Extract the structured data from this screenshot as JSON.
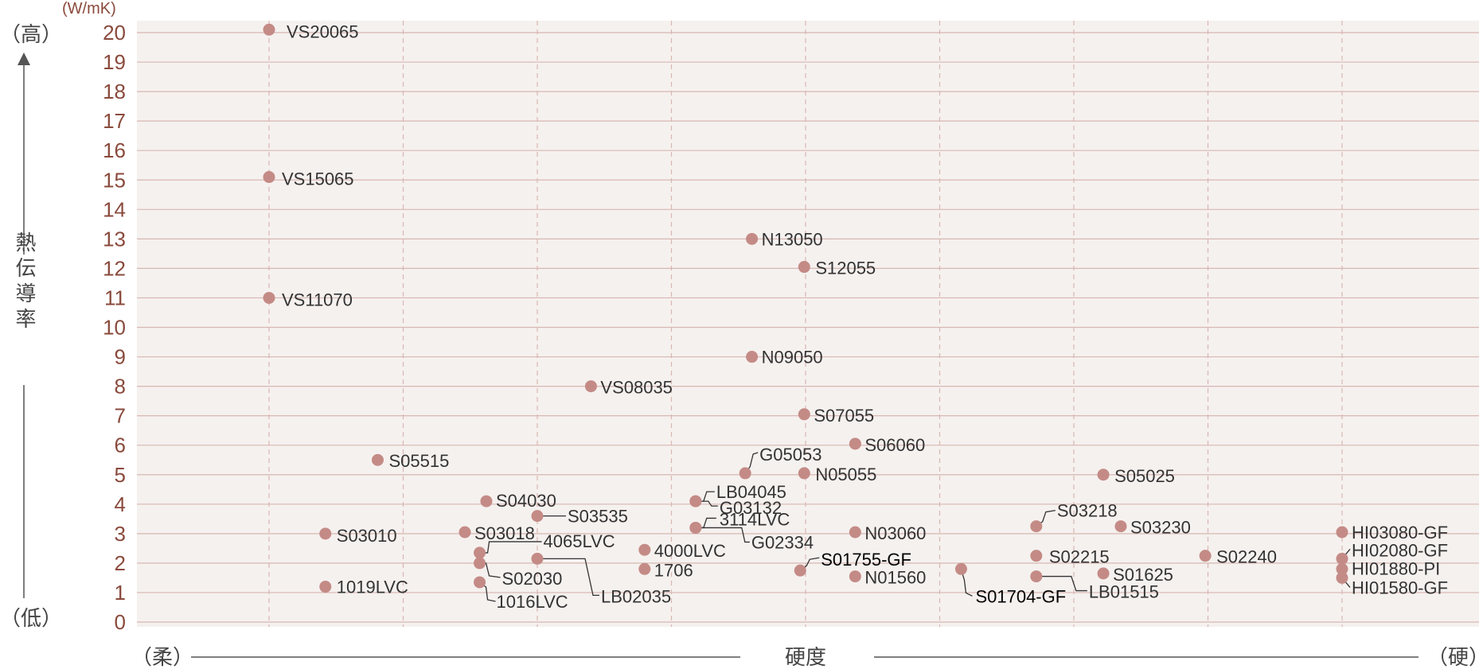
{
  "chart_data": {
    "type": "scatter",
    "y_unit": "(W/mK)",
    "ylabel": "熱伝導率",
    "ylabel_high": "（高）",
    "ylabel_low": "（低）",
    "xlabel": "硬度",
    "xlabel_soft": "（柔）",
    "xlabel_hard": "（硬）",
    "ylim": [
      0,
      20
    ],
    "yticks": [
      0,
      1,
      2,
      3,
      4,
      5,
      6,
      7,
      8,
      9,
      10,
      11,
      12,
      13,
      14,
      15,
      16,
      17,
      18,
      19,
      20
    ],
    "xlim": [
      0,
      10
    ],
    "grid": true,
    "point_color": "#c48b86",
    "grid_color": "#d8b7b2",
    "plot_bg": "#f5f1ef",
    "tick_color": "#8a4a3c",
    "points": [
      {
        "name": "VS20065",
        "x": 1.0,
        "y": 20.1
      },
      {
        "name": "VS15065",
        "x": 1.0,
        "y": 15.1
      },
      {
        "name": "VS11070",
        "x": 1.0,
        "y": 11.0
      },
      {
        "name": "S05515",
        "x": 1.81,
        "y": 5.5
      },
      {
        "name": "S03010",
        "x": 1.42,
        "y": 3.0
      },
      {
        "name": "1019LVC",
        "x": 1.42,
        "y": 1.2
      },
      {
        "name": "S04030",
        "x": 2.62,
        "y": 4.1
      },
      {
        "name": "S03018",
        "x": 2.46,
        "y": 3.05
      },
      {
        "name": "4065LVC",
        "x": 2.57,
        "y": 2.35
      },
      {
        "name": "S02030",
        "x": 2.57,
        "y": 2.0
      },
      {
        "name": "1016LVC",
        "x": 2.57,
        "y": 1.35
      },
      {
        "name": "S03535",
        "x": 3.0,
        "y": 3.6
      },
      {
        "name": "LB02035",
        "x": 3.0,
        "y": 2.15
      },
      {
        "name": "VS08035",
        "x": 3.4,
        "y": 8.0
      },
      {
        "name": "4000LVC",
        "x": 3.8,
        "y": 2.45
      },
      {
        "name": "1706",
        "x": 3.8,
        "y": 1.8
      },
      {
        "name": "LB04045",
        "x": 4.18,
        "y": 4.1
      },
      {
        "name": "G03132",
        "x": 4.18,
        "y": 4.1
      },
      {
        "name": "3114LVC",
        "x": 4.18,
        "y": 3.2
      },
      {
        "name": "G02334",
        "x": 4.18,
        "y": 3.2
      },
      {
        "name": "G05053",
        "x": 4.55,
        "y": 5.05
      },
      {
        "name": "N13050",
        "x": 4.6,
        "y": 13.0
      },
      {
        "name": "N09050",
        "x": 4.6,
        "y": 9.0
      },
      {
        "name": "S12055",
        "x": 4.99,
        "y": 12.05
      },
      {
        "name": "S07055",
        "x": 4.99,
        "y": 7.05
      },
      {
        "name": "N05055",
        "x": 4.99,
        "y": 5.05
      },
      {
        "name": "S01755-GF",
        "x": 4.96,
        "y": 1.75
      },
      {
        "name": "S06060",
        "x": 5.37,
        "y": 6.05
      },
      {
        "name": "N03060",
        "x": 5.37,
        "y": 3.05
      },
      {
        "name": "N01560",
        "x": 5.37,
        "y": 1.55
      },
      {
        "name": "S01704-GF",
        "x": 6.16,
        "y": 1.8
      },
      {
        "name": "S03218",
        "x": 6.72,
        "y": 3.25
      },
      {
        "name": "S02215",
        "x": 6.72,
        "y": 2.25
      },
      {
        "name": "LB01515",
        "x": 6.72,
        "y": 1.55
      },
      {
        "name": "S05025",
        "x": 7.22,
        "y": 5.0
      },
      {
        "name": "S03230",
        "x": 7.35,
        "y": 3.25
      },
      {
        "name": "S01625",
        "x": 7.22,
        "y": 1.65
      },
      {
        "name": "S02240",
        "x": 7.98,
        "y": 2.25
      },
      {
        "name": "HI03080-GF",
        "x": 9.0,
        "y": 3.05
      },
      {
        "name": "HI02080-GF",
        "x": 9.0,
        "y": 2.15
      },
      {
        "name": "HI01880-PI",
        "x": 9.0,
        "y": 1.8
      },
      {
        "name": "HI01580-GF",
        "x": 9.0,
        "y": 1.5
      }
    ]
  }
}
